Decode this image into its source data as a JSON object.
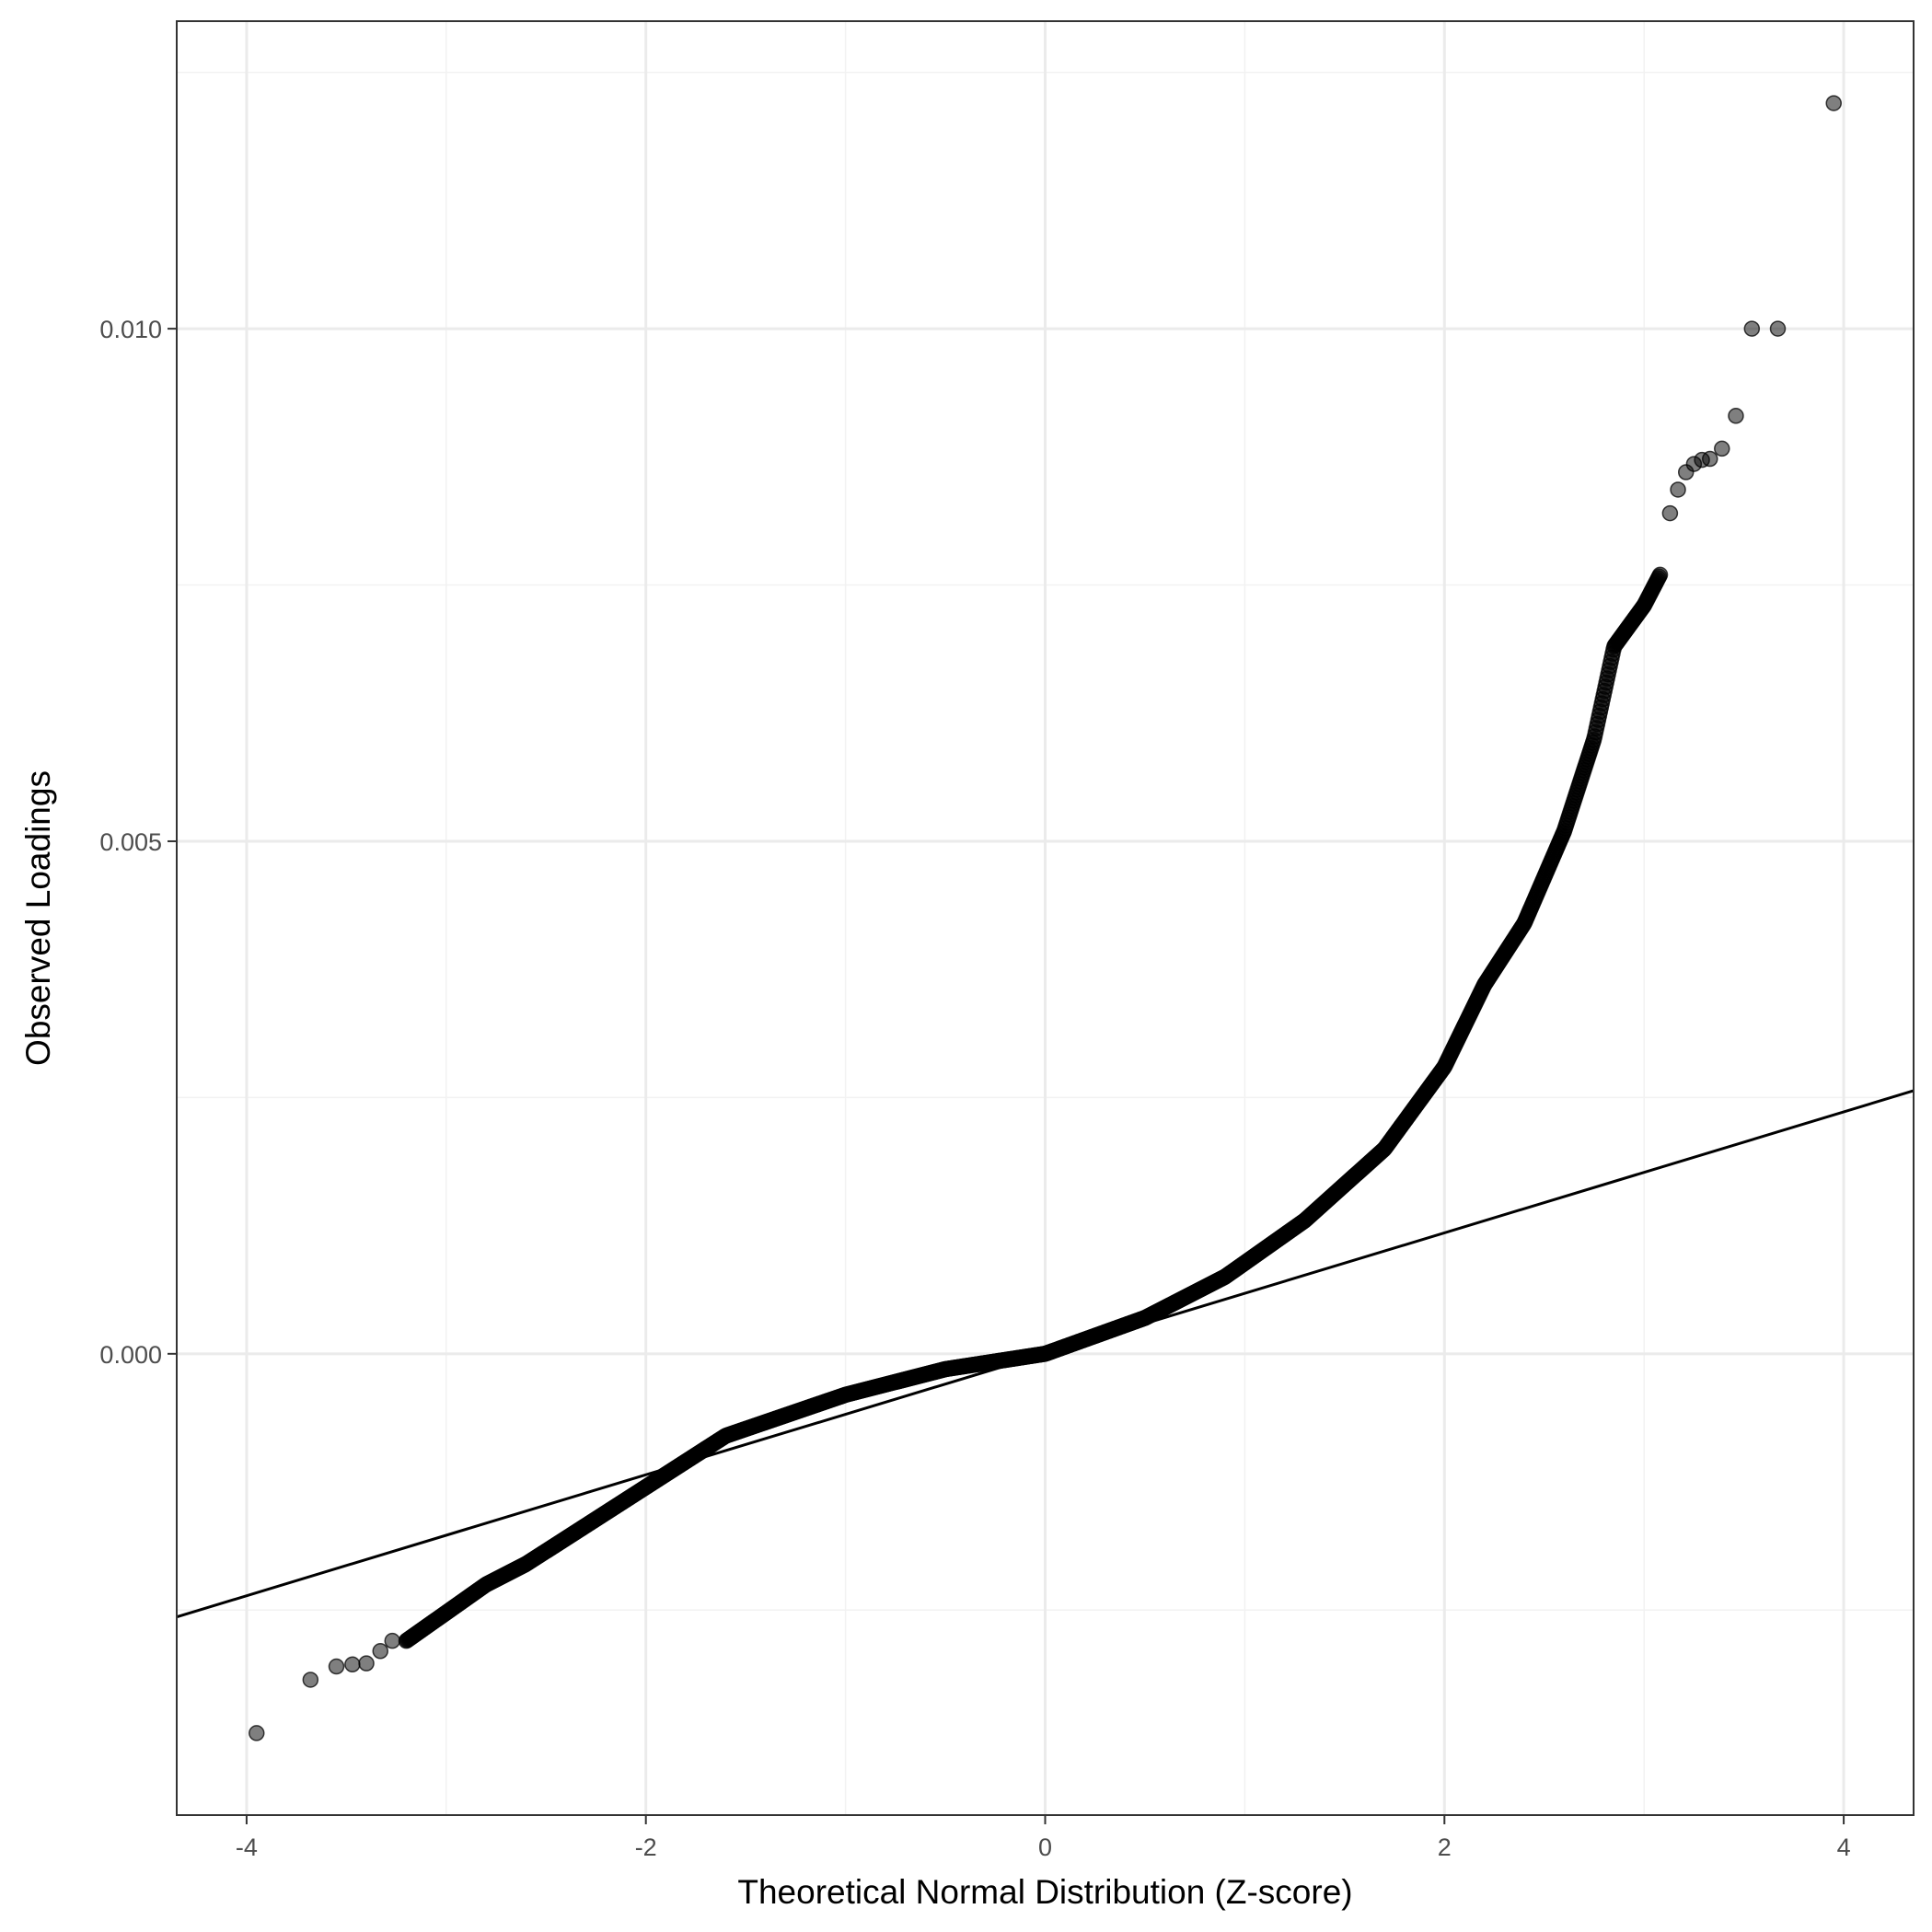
{
  "chart_data": {
    "type": "scatter",
    "xlabel": "Theoretical Normal Distribution (Z-score)",
    "ylabel": "Observed Loadings",
    "xlim": [
      -4.35,
      4.35
    ],
    "ylim": [
      -0.0045,
      0.013
    ],
    "x_ticks": [
      -4,
      -2,
      0,
      2,
      4
    ],
    "x_tick_labels": [
      "-4",
      "-2",
      "0",
      "2",
      "4"
    ],
    "y_ticks": [
      0.0,
      0.005,
      0.01
    ],
    "y_tick_labels": [
      "0.000",
      "0.005",
      "0.010"
    ],
    "grid": true,
    "point_color": "#000000",
    "point_opacity": 0.5,
    "reference_line": {
      "slope": 0.00059,
      "intercept": 0.0,
      "color": "#000000"
    },
    "curve_anchors": [
      [
        -3.2,
        -0.0028
      ],
      [
        -2.8,
        -0.00225
      ],
      [
        -2.6,
        -0.00205
      ],
      [
        -2.2,
        -0.00155
      ],
      [
        -2.0,
        -0.0013
      ],
      [
        -1.6,
        -0.0008
      ],
      [
        -1.0,
        -0.0004
      ],
      [
        -0.5,
        -0.00015
      ],
      [
        0.0,
        0.0
      ],
      [
        0.5,
        0.00035
      ],
      [
        0.9,
        0.00075
      ],
      [
        1.3,
        0.0013
      ],
      [
        1.7,
        0.002
      ],
      [
        2.0,
        0.0028
      ],
      [
        2.2,
        0.0036
      ],
      [
        2.4,
        0.0042
      ],
      [
        2.6,
        0.0051
      ],
      [
        2.75,
        0.006
      ],
      [
        2.85,
        0.0069
      ],
      [
        3.0,
        0.0073
      ],
      [
        3.08,
        0.0076
      ]
    ],
    "outliers": [
      [
        -3.95,
        -0.0037
      ],
      [
        -3.68,
        -0.00318
      ],
      [
        -3.55,
        -0.00305
      ],
      [
        -3.47,
        -0.00303
      ],
      [
        -3.4,
        -0.00302
      ],
      [
        -3.33,
        -0.0029
      ],
      [
        -3.27,
        -0.0028
      ],
      [
        3.13,
        0.0082
      ],
      [
        3.17,
        0.00843
      ],
      [
        3.21,
        0.0086
      ],
      [
        3.25,
        0.00868
      ],
      [
        3.29,
        0.00872
      ],
      [
        3.33,
        0.00873
      ],
      [
        3.39,
        0.00883
      ],
      [
        3.46,
        0.00915
      ],
      [
        3.54,
        0.01
      ],
      [
        3.67,
        0.01
      ],
      [
        3.95,
        0.0122
      ]
    ]
  }
}
